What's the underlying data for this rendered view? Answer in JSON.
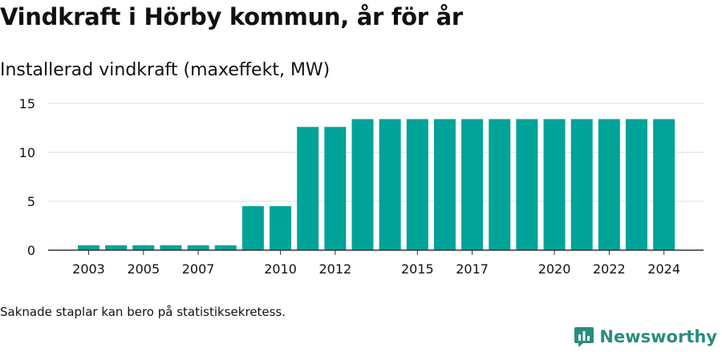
{
  "title": "Vindkraft i Hörby kommun, år för år",
  "subtitle": "Installerad vindkraft (maxeffekt, MW)",
  "footnote": "Saknade staplar kan bero på statistiksekretess.",
  "brand": {
    "name": "Newsworthy",
    "icon": "newsworthy-logo-icon",
    "color": "#2a8c7e"
  },
  "chart_data": {
    "type": "bar",
    "title": "",
    "xlabel": "",
    "ylabel": "",
    "categories": [
      "2003",
      "2004",
      "2005",
      "2006",
      "2007",
      "2008",
      "2009",
      "2010",
      "2011",
      "2012",
      "2013",
      "2014",
      "2015",
      "2016",
      "2017",
      "2018",
      "2019",
      "2020",
      "2021",
      "2022",
      "2023",
      "2024"
    ],
    "x_tick_labels": [
      "2003",
      "2005",
      "2007",
      "2010",
      "2012",
      "2015",
      "2017",
      "2020",
      "2022",
      "2024"
    ],
    "values": [
      0.5,
      0.5,
      0.5,
      0.5,
      0.5,
      0.5,
      4.5,
      4.5,
      12.6,
      12.6,
      13.4,
      13.4,
      13.4,
      13.4,
      13.4,
      13.4,
      13.4,
      13.4,
      13.4,
      13.4,
      13.4,
      13.4
    ],
    "ylim": [
      0,
      15
    ],
    "yticks": [
      0,
      5,
      10,
      15
    ],
    "grid": true,
    "bar_color": "#00a398",
    "grid_color": "#dddddd",
    "axis_color": "#333333"
  }
}
